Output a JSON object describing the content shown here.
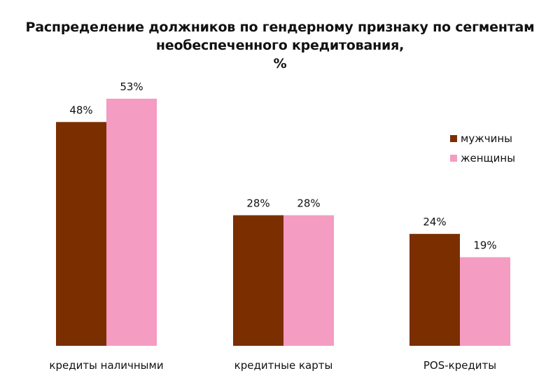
{
  "title_lines": [
    "Распределение должников по гендерному признаку по сегментам",
    "необеспеченного кредитования,",
    "%"
  ],
  "chart_data": {
    "type": "bar",
    "title": "Распределение должников по гендерному признаку по сегментам необеспеченного кредитования, %",
    "categories": [
      "кредиты наличными",
      "кредитные карты",
      "POS-кредиты"
    ],
    "series": [
      {
        "name": "мужчины",
        "color": "#7B2E00",
        "values": [
          48,
          28,
          24
        ],
        "labels": [
          "48%",
          "28%",
          "24%"
        ]
      },
      {
        "name": "женщины",
        "color": "#F49CC2",
        "values": [
          53,
          28,
          19
        ],
        "labels": [
          "53%",
          "28%",
          "19%"
        ]
      }
    ],
    "ylim": [
      0,
      53
    ],
    "xlabel": "",
    "ylabel": "",
    "grid": false,
    "legend": "right"
  }
}
